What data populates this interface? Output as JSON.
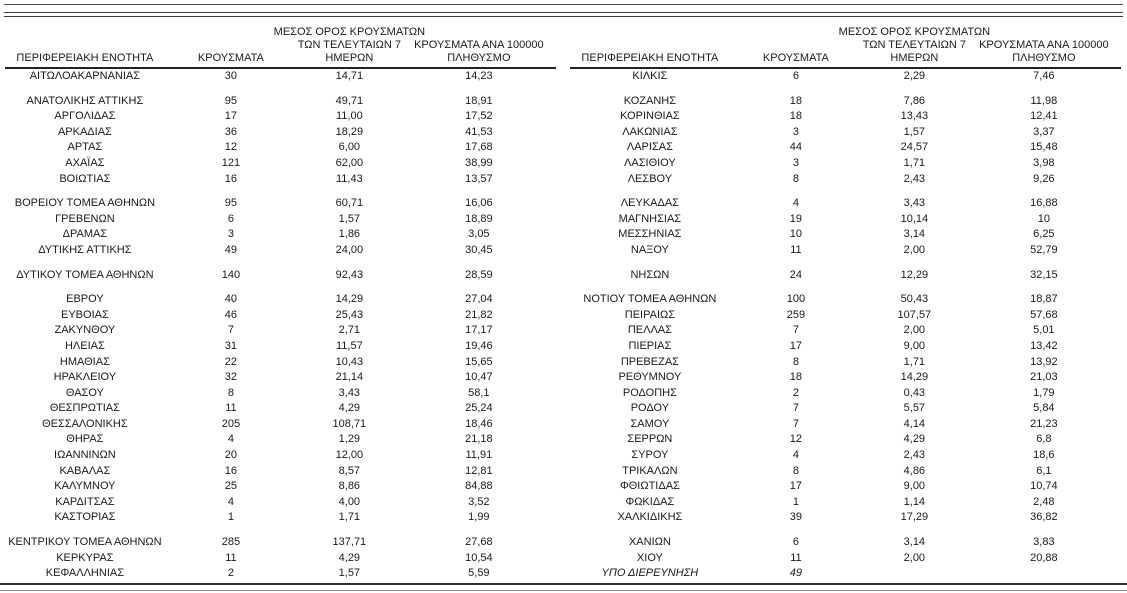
{
  "page": {
    "background": "#ffffff",
    "text_color": "#1a1a1a",
    "rule_color": "#3f3f3f"
  },
  "header": {
    "col_region": "ΠΕΡΙΦΕΡΕΙΑΚΗ ΕΝΟΤΗΤΑ",
    "col_cases": "ΚΡΟΥΣΜΑΤΑ",
    "col_avg7_lines": [
      "ΜΕΣΟΣ ΟΡΟΣ ΚΡΟΥΣΜΑΤΩΝ",
      "ΤΩΝ ΤΕΛΕΥΤΑΙΩΝ 7",
      "ΗΜΕΡΩΝ"
    ],
    "col_per100k_lines": [
      "ΚΡΟΥΣΜΑΤΑ ΑΝΑ 100000",
      "ΠΛΗΘΥΣΜΟ"
    ]
  },
  "tables": [
    {
      "rows": [
        {
          "cells": [
            "ΑΙΤΩΛΟΑΚΑΡΝΑΝΙΑΣ",
            "30",
            "14,71",
            "14,23"
          ]
        },
        {
          "spacer": true
        },
        {
          "cells": [
            "ΑΝΑΤΟΛΙΚΗΣ ΑΤΤΙΚΗΣ",
            "95",
            "49,71",
            "18,91"
          ]
        },
        {
          "cells": [
            "ΑΡΓΟΛΙΔΑΣ",
            "17",
            "11,00",
            "17,52"
          ]
        },
        {
          "cells": [
            "ΑΡΚΑΔΙΑΣ",
            "36",
            "18,29",
            "41,53"
          ]
        },
        {
          "cells": [
            "ΑΡΤΑΣ",
            "12",
            "6,00",
            "17,68"
          ]
        },
        {
          "cells": [
            "ΑΧΑΪΑΣ",
            "121",
            "62,00",
            "38,99"
          ]
        },
        {
          "cells": [
            "ΒΟΙΩΤΙΑΣ",
            "16",
            "11,43",
            "13,57"
          ]
        },
        {
          "spacer": true
        },
        {
          "cells": [
            "ΒΟΡΕΙΟΥ ΤΟΜΕΑ ΑΘΗΝΩΝ",
            "95",
            "60,71",
            "16,06"
          ]
        },
        {
          "cells": [
            "ΓΡΕΒΕΝΩΝ",
            "6",
            "1,57",
            "18,89"
          ]
        },
        {
          "cells": [
            "ΔΡΑΜΑΣ",
            "3",
            "1,86",
            "3,05"
          ]
        },
        {
          "cells": [
            "ΔΥΤΙΚΗΣ ΑΤΤΙΚΗΣ",
            "49",
            "24,00",
            "30,45"
          ]
        },
        {
          "spacer": true
        },
        {
          "cells": [
            "ΔΥΤΙΚΟΥ ΤΟΜΕΑ ΑΘΗΝΩΝ",
            "140",
            "92,43",
            "28,59"
          ]
        },
        {
          "spacer": true
        },
        {
          "cells": [
            "ΕΒΡΟΥ",
            "40",
            "14,29",
            "27,04"
          ]
        },
        {
          "cells": [
            "ΕΥΒΟΙΑΣ",
            "46",
            "25,43",
            "21,82"
          ]
        },
        {
          "cells": [
            "ΖΑΚΥΝΘΟΥ",
            "7",
            "2,71",
            "17,17"
          ]
        },
        {
          "cells": [
            "ΗΛΕΙΑΣ",
            "31",
            "11,57",
            "19,46"
          ]
        },
        {
          "cells": [
            "ΗΜΑΘΙΑΣ",
            "22",
            "10,43",
            "15,65"
          ]
        },
        {
          "cells": [
            "ΗΡΑΚΛΕΙΟΥ",
            "32",
            "21,14",
            "10,47"
          ]
        },
        {
          "cells": [
            "ΘΑΣΟΥ",
            "8",
            "3,43",
            "58,1"
          ]
        },
        {
          "cells": [
            "ΘΕΣΠΡΩΤΙΑΣ",
            "11",
            "4,29",
            "25,24"
          ]
        },
        {
          "cells": [
            "ΘΕΣΣΑΛΟΝΙΚΗΣ",
            "205",
            "108,71",
            "18,46"
          ]
        },
        {
          "cells": [
            "ΘΗΡΑΣ",
            "4",
            "1,29",
            "21,18"
          ]
        },
        {
          "cells": [
            "ΙΩΑΝΝΙΝΩΝ",
            "20",
            "12,00",
            "11,91"
          ]
        },
        {
          "cells": [
            "ΚΑΒΑΛΑΣ",
            "16",
            "8,57",
            "12,81"
          ]
        },
        {
          "cells": [
            "ΚΑΛΥΜΝΟΥ",
            "25",
            "8,86",
            "84,88"
          ]
        },
        {
          "cells": [
            "ΚΑΡΔΙΤΣΑΣ",
            "4",
            "4,00",
            "3,52"
          ]
        },
        {
          "cells": [
            "ΚΑΣΤΟΡΙΑΣ",
            "1",
            "1,71",
            "1,99"
          ]
        },
        {
          "spacer": true
        },
        {
          "cells": [
            "ΚΕΝΤΡΙΚΟΥ ΤΟΜΕΑ ΑΘΗΝΩΝ",
            "285",
            "137,71",
            "27,68"
          ]
        },
        {
          "cells": [
            "ΚΕΡΚΥΡΑΣ",
            "11",
            "4,29",
            "10,54"
          ]
        },
        {
          "cells": [
            "ΚΕΦΑΛΛΗΝΙΑΣ",
            "2",
            "1,57",
            "5,59"
          ]
        }
      ]
    },
    {
      "rows": [
        {
          "cells": [
            "ΚΙΛΚΙΣ",
            "6",
            "2,29",
            "7,46"
          ]
        },
        {
          "spacer": true
        },
        {
          "cells": [
            "ΚΟΖΑΝΗΣ",
            "18",
            "7,86",
            "11,98"
          ]
        },
        {
          "cells": [
            "ΚΟΡΙΝΘΙΑΣ",
            "18",
            "13,43",
            "12,41"
          ]
        },
        {
          "cells": [
            "ΛΑΚΩΝΙΑΣ",
            "3",
            "1,57",
            "3,37"
          ]
        },
        {
          "cells": [
            "ΛΑΡΙΣΑΣ",
            "44",
            "24,57",
            "15,48"
          ]
        },
        {
          "cells": [
            "ΛΑΣΙΘΙΟΥ",
            "3",
            "1,71",
            "3,98"
          ]
        },
        {
          "cells": [
            "ΛΕΣΒΟΥ",
            "8",
            "2,43",
            "9,26"
          ]
        },
        {
          "spacer": true
        },
        {
          "cells": [
            "ΛΕΥΚΑΔΑΣ",
            "4",
            "3,43",
            "16,88"
          ]
        },
        {
          "cells": [
            "ΜΑΓΝΗΣΙΑΣ",
            "19",
            "10,14",
            "10"
          ]
        },
        {
          "cells": [
            "ΜΕΣΣΗΝΙΑΣ",
            "10",
            "3,14",
            "6,25"
          ]
        },
        {
          "cells": [
            "ΝΑΞΟΥ",
            "11",
            "2,00",
            "52,79"
          ]
        },
        {
          "spacer": true
        },
        {
          "cells": [
            "ΝΗΣΩΝ",
            "24",
            "12,29",
            "32,15"
          ]
        },
        {
          "spacer": true
        },
        {
          "cells": [
            "ΝΟΤΙΟΥ ΤΟΜΕΑ ΑΘΗΝΩΝ",
            "100",
            "50,43",
            "18,87"
          ]
        },
        {
          "cells": [
            "ΠΕΙΡΑΙΩΣ",
            "259",
            "107,57",
            "57,68"
          ]
        },
        {
          "cells": [
            "ΠΕΛΛΑΣ",
            "7",
            "2,00",
            "5,01"
          ]
        },
        {
          "cells": [
            "ΠΙΕΡΙΑΣ",
            "17",
            "9,00",
            "13,42"
          ]
        },
        {
          "cells": [
            "ΠΡΕΒΕΖΑΣ",
            "8",
            "1,71",
            "13,92"
          ]
        },
        {
          "cells": [
            "ΡΕΘΥΜΝΟΥ",
            "18",
            "14,29",
            "21,03"
          ]
        },
        {
          "cells": [
            "ΡΟΔΟΠΗΣ",
            "2",
            "0,43",
            "1,79"
          ]
        },
        {
          "cells": [
            "ΡΟΔΟΥ",
            "7",
            "5,57",
            "5,84"
          ]
        },
        {
          "cells": [
            "ΣΑΜΟΥ",
            "7",
            "4,14",
            "21,23"
          ]
        },
        {
          "cells": [
            "ΣΕΡΡΩΝ",
            "12",
            "4,29",
            "6,8"
          ]
        },
        {
          "cells": [
            "ΣΥΡΟΥ",
            "4",
            "2,43",
            "18,6"
          ]
        },
        {
          "cells": [
            "ΤΡΙΚΑΛΩΝ",
            "8",
            "4,86",
            "6,1"
          ]
        },
        {
          "cells": [
            "ΦΘΙΩΤΙΔΑΣ",
            "17",
            "9,00",
            "10,74"
          ]
        },
        {
          "cells": [
            "ΦΩΚΙΔΑΣ",
            "1",
            "1,14",
            "2,48"
          ]
        },
        {
          "cells": [
            "ΧΑΛΚΙΔΙΚΗΣ",
            "39",
            "17,29",
            "36,82"
          ]
        },
        {
          "spacer": true
        },
        {
          "cells": [
            "ΧΑΝΙΩΝ",
            "6",
            "3,14",
            "3,83"
          ]
        },
        {
          "cells": [
            "ΧΙΟΥ",
            "11",
            "2,00",
            "20,88"
          ]
        },
        {
          "cells": [
            "ΥΠΟ ΔΙΕΡΕΥΝΗΣΗ",
            "49",
            "",
            ""
          ],
          "italic": true
        }
      ]
    }
  ]
}
